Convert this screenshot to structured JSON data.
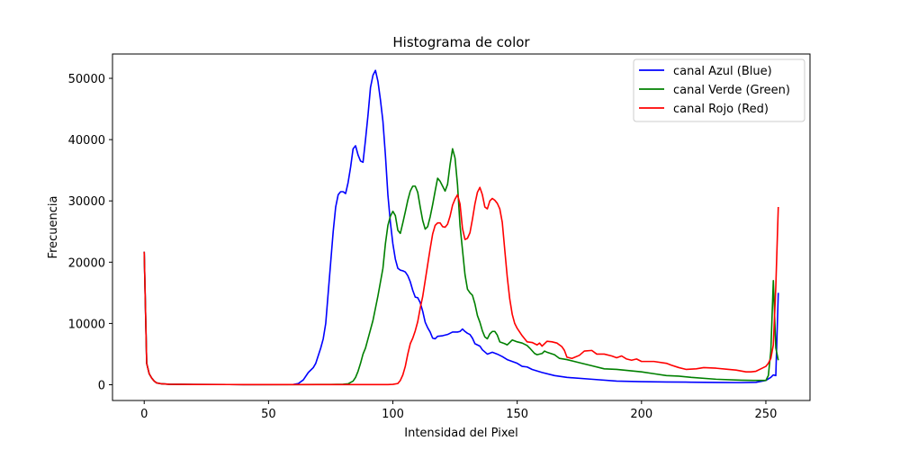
{
  "chart_data": {
    "type": "line",
    "title": "Histograma de color",
    "xlabel": "Intensidad del Pixel",
    "ylabel": "Frecuencia",
    "xlim": [
      -12.75,
      267.75
    ],
    "ylim": [
      -2570,
      53970
    ],
    "xticks": [
      "0",
      "50",
      "100",
      "150",
      "200",
      "250"
    ],
    "yticks": [
      "0",
      "10000",
      "20000",
      "30000",
      "40000",
      "50000"
    ],
    "legend": {
      "placement": "top-right"
    },
    "grid": false,
    "series": [
      {
        "name": "canal Azul (Blue)",
        "color": "#0000ff",
        "points": [
          [
            0,
            21700
          ],
          [
            1,
            3500
          ],
          [
            2,
            1800
          ],
          [
            3,
            1100
          ],
          [
            4,
            600
          ],
          [
            5,
            300
          ],
          [
            7,
            150
          ],
          [
            10,
            80
          ],
          [
            20,
            50
          ],
          [
            40,
            30
          ],
          [
            60,
            50
          ],
          [
            62,
            200
          ],
          [
            64,
            800
          ],
          [
            66,
            2000
          ],
          [
            68,
            2800
          ],
          [
            69,
            3500
          ],
          [
            71,
            6000
          ],
          [
            72,
            7500
          ],
          [
            73,
            10000
          ],
          [
            74,
            15000
          ],
          [
            75,
            20000
          ],
          [
            76,
            25000
          ],
          [
            77,
            29000
          ],
          [
            78,
            31000
          ],
          [
            79,
            31500
          ],
          [
            80,
            31500
          ],
          [
            81,
            31200
          ],
          [
            82,
            33000
          ],
          [
            83,
            35500
          ],
          [
            84,
            38500
          ],
          [
            85,
            39000
          ],
          [
            86,
            37500
          ],
          [
            87,
            36500
          ],
          [
            88,
            36300
          ],
          [
            89,
            40000
          ],
          [
            90,
            44000
          ],
          [
            91,
            48500
          ],
          [
            92,
            50500
          ],
          [
            93,
            51300
          ],
          [
            94,
            49500
          ],
          [
            95,
            46500
          ],
          [
            96,
            43000
          ],
          [
            97,
            37500
          ],
          [
            98,
            31000
          ],
          [
            99,
            26500
          ],
          [
            100,
            23000
          ],
          [
            101,
            20500
          ],
          [
            102,
            19000
          ],
          [
            103,
            18700
          ],
          [
            104,
            18600
          ],
          [
            105,
            18400
          ],
          [
            106,
            17800
          ],
          [
            107,
            16800
          ],
          [
            108,
            15400
          ],
          [
            109,
            14300
          ],
          [
            110,
            14200
          ],
          [
            111,
            13400
          ],
          [
            112,
            12000
          ],
          [
            113,
            10200
          ],
          [
            114,
            9300
          ],
          [
            115,
            8600
          ],
          [
            116,
            7600
          ],
          [
            117,
            7500
          ],
          [
            118,
            7900
          ],
          [
            120,
            8000
          ],
          [
            122,
            8200
          ],
          [
            124,
            8600
          ],
          [
            126,
            8600
          ],
          [
            127,
            8700
          ],
          [
            128,
            9100
          ],
          [
            129,
            8700
          ],
          [
            130,
            8400
          ],
          [
            131,
            8200
          ],
          [
            132,
            7600
          ],
          [
            133,
            6700
          ],
          [
            135,
            6300
          ],
          [
            136,
            5700
          ],
          [
            138,
            5000
          ],
          [
            140,
            5300
          ],
          [
            142,
            5000
          ],
          [
            144,
            4600
          ],
          [
            146,
            4100
          ],
          [
            148,
            3800
          ],
          [
            150,
            3500
          ],
          [
            152,
            3000
          ],
          [
            154,
            2900
          ],
          [
            156,
            2500
          ],
          [
            160,
            2000
          ],
          [
            165,
            1500
          ],
          [
            170,
            1200
          ],
          [
            180,
            900
          ],
          [
            190,
            600
          ],
          [
            200,
            500
          ],
          [
            210,
            450
          ],
          [
            220,
            420
          ],
          [
            230,
            380
          ],
          [
            240,
            350
          ],
          [
            246,
            400
          ],
          [
            250,
            700
          ],
          [
            252,
            1200
          ],
          [
            253,
            1600
          ],
          [
            254,
            1500
          ],
          [
            255,
            15000
          ]
        ]
      },
      {
        "name": "canal Verde (Green)",
        "color": "#008000",
        "points": [
          [
            0,
            21700
          ],
          [
            1,
            3500
          ],
          [
            2,
            1800
          ],
          [
            3,
            1100
          ],
          [
            4,
            600
          ],
          [
            5,
            300
          ],
          [
            7,
            150
          ],
          [
            10,
            80
          ],
          [
            20,
            50
          ],
          [
            40,
            30
          ],
          [
            60,
            30
          ],
          [
            70,
            40
          ],
          [
            75,
            40
          ],
          [
            80,
            80
          ],
          [
            82,
            150
          ],
          [
            84,
            600
          ],
          [
            85,
            1200
          ],
          [
            86,
            2200
          ],
          [
            87,
            3500
          ],
          [
            88,
            5000
          ],
          [
            89,
            6000
          ],
          [
            90,
            7500
          ],
          [
            92,
            10500
          ],
          [
            94,
            14500
          ],
          [
            96,
            19000
          ],
          [
            97,
            23000
          ],
          [
            98,
            26000
          ],
          [
            99,
            27500
          ],
          [
            100,
            28300
          ],
          [
            101,
            27600
          ],
          [
            102,
            25200
          ],
          [
            103,
            24700
          ],
          [
            104,
            26400
          ],
          [
            105,
            28200
          ],
          [
            106,
            30100
          ],
          [
            107,
            31600
          ],
          [
            108,
            32400
          ],
          [
            109,
            32400
          ],
          [
            110,
            31400
          ],
          [
            111,
            29000
          ],
          [
            112,
            26800
          ],
          [
            113,
            25400
          ],
          [
            114,
            25800
          ],
          [
            115,
            27400
          ],
          [
            116,
            29400
          ],
          [
            117,
            31600
          ],
          [
            118,
            33700
          ],
          [
            119,
            33200
          ],
          [
            120,
            32400
          ],
          [
            121,
            31600
          ],
          [
            122,
            32700
          ],
          [
            123,
            35900
          ],
          [
            124,
            38500
          ],
          [
            125,
            37000
          ],
          [
            126,
            32600
          ],
          [
            127,
            26000
          ],
          [
            128,
            22000
          ],
          [
            129,
            18000
          ],
          [
            130,
            15600
          ],
          [
            131,
            15000
          ],
          [
            132,
            14600
          ],
          [
            133,
            13200
          ],
          [
            134,
            11300
          ],
          [
            135,
            10200
          ],
          [
            136,
            8800
          ],
          [
            137,
            7800
          ],
          [
            138,
            7500
          ],
          [
            139,
            8300
          ],
          [
            140,
            8700
          ],
          [
            141,
            8700
          ],
          [
            142,
            8100
          ],
          [
            143,
            7000
          ],
          [
            145,
            6700
          ],
          [
            146,
            6500
          ],
          [
            148,
            7300
          ],
          [
            150,
            7000
          ],
          [
            152,
            6800
          ],
          [
            154,
            6400
          ],
          [
            155,
            6000
          ],
          [
            157,
            5100
          ],
          [
            158,
            4900
          ],
          [
            160,
            5100
          ],
          [
            161,
            5500
          ],
          [
            162,
            5300
          ],
          [
            165,
            4900
          ],
          [
            167,
            4300
          ],
          [
            170,
            4100
          ],
          [
            175,
            3600
          ],
          [
            180,
            3100
          ],
          [
            185,
            2600
          ],
          [
            190,
            2500
          ],
          [
            195,
            2300
          ],
          [
            200,
            2100
          ],
          [
            205,
            1800
          ],
          [
            210,
            1500
          ],
          [
            215,
            1400
          ],
          [
            220,
            1200
          ],
          [
            230,
            900
          ],
          [
            240,
            750
          ],
          [
            245,
            700
          ],
          [
            248,
            700
          ],
          [
            250,
            700
          ],
          [
            251,
            1500
          ],
          [
            252,
            5500
          ],
          [
            253,
            17000
          ],
          [
            254,
            6000
          ],
          [
            255,
            4000
          ]
        ]
      },
      {
        "name": "canal Rojo (Red)",
        "color": "#ff0000",
        "points": [
          [
            0,
            21700
          ],
          [
            1,
            3500
          ],
          [
            2,
            1800
          ],
          [
            3,
            1100
          ],
          [
            4,
            600
          ],
          [
            5,
            300
          ],
          [
            7,
            150
          ],
          [
            10,
            80
          ],
          [
            20,
            50
          ],
          [
            40,
            30
          ],
          [
            60,
            20
          ],
          [
            80,
            20
          ],
          [
            98,
            30
          ],
          [
            100,
            60
          ],
          [
            102,
            200
          ],
          [
            103,
            700
          ],
          [
            104,
            1600
          ],
          [
            105,
            3000
          ],
          [
            106,
            5000
          ],
          [
            107,
            6700
          ],
          [
            108,
            7600
          ],
          [
            109,
            8800
          ],
          [
            110,
            10300
          ],
          [
            111,
            12500
          ],
          [
            112,
            14400
          ],
          [
            113,
            17000
          ],
          [
            114,
            19600
          ],
          [
            115,
            22200
          ],
          [
            116,
            24600
          ],
          [
            117,
            26000
          ],
          [
            118,
            26400
          ],
          [
            119,
            26400
          ],
          [
            120,
            25800
          ],
          [
            121,
            25700
          ],
          [
            122,
            26200
          ],
          [
            123,
            27500
          ],
          [
            124,
            29300
          ],
          [
            125,
            30300
          ],
          [
            126,
            31000
          ],
          [
            127,
            29500
          ],
          [
            128,
            25500
          ],
          [
            129,
            23700
          ],
          [
            130,
            23900
          ],
          [
            131,
            24800
          ],
          [
            132,
            27000
          ],
          [
            133,
            29500
          ],
          [
            134,
            31400
          ],
          [
            135,
            32200
          ],
          [
            136,
            31000
          ],
          [
            137,
            29000
          ],
          [
            138,
            28700
          ],
          [
            139,
            30000
          ],
          [
            140,
            30400
          ],
          [
            141,
            30100
          ],
          [
            142,
            29600
          ],
          [
            143,
            28700
          ],
          [
            144,
            26500
          ],
          [
            145,
            22000
          ],
          [
            146,
            17600
          ],
          [
            147,
            14000
          ],
          [
            148,
            11500
          ],
          [
            149,
            10000
          ],
          [
            150,
            9200
          ],
          [
            152,
            8000
          ],
          [
            154,
            7000
          ],
          [
            156,
            6900
          ],
          [
            158,
            6500
          ],
          [
            159,
            6800
          ],
          [
            160,
            6300
          ],
          [
            162,
            7100
          ],
          [
            164,
            7000
          ],
          [
            166,
            6800
          ],
          [
            168,
            6200
          ],
          [
            169,
            5600
          ],
          [
            170,
            4500
          ],
          [
            172,
            4300
          ],
          [
            175,
            4800
          ],
          [
            177,
            5500
          ],
          [
            180,
            5600
          ],
          [
            182,
            5000
          ],
          [
            185,
            5000
          ],
          [
            188,
            4700
          ],
          [
            190,
            4400
          ],
          [
            192,
            4700
          ],
          [
            194,
            4200
          ],
          [
            196,
            4000
          ],
          [
            198,
            4200
          ],
          [
            200,
            3800
          ],
          [
            205,
            3800
          ],
          [
            210,
            3500
          ],
          [
            212,
            3200
          ],
          [
            215,
            2800
          ],
          [
            218,
            2500
          ],
          [
            222,
            2600
          ],
          [
            225,
            2800
          ],
          [
            230,
            2700
          ],
          [
            235,
            2500
          ],
          [
            238,
            2400
          ],
          [
            242,
            2100
          ],
          [
            244,
            2100
          ],
          [
            246,
            2200
          ],
          [
            248,
            2600
          ],
          [
            250,
            3000
          ],
          [
            251,
            3500
          ],
          [
            252,
            4300
          ],
          [
            253,
            6500
          ],
          [
            254,
            16000
          ],
          [
            255,
            29000
          ]
        ]
      }
    ]
  }
}
